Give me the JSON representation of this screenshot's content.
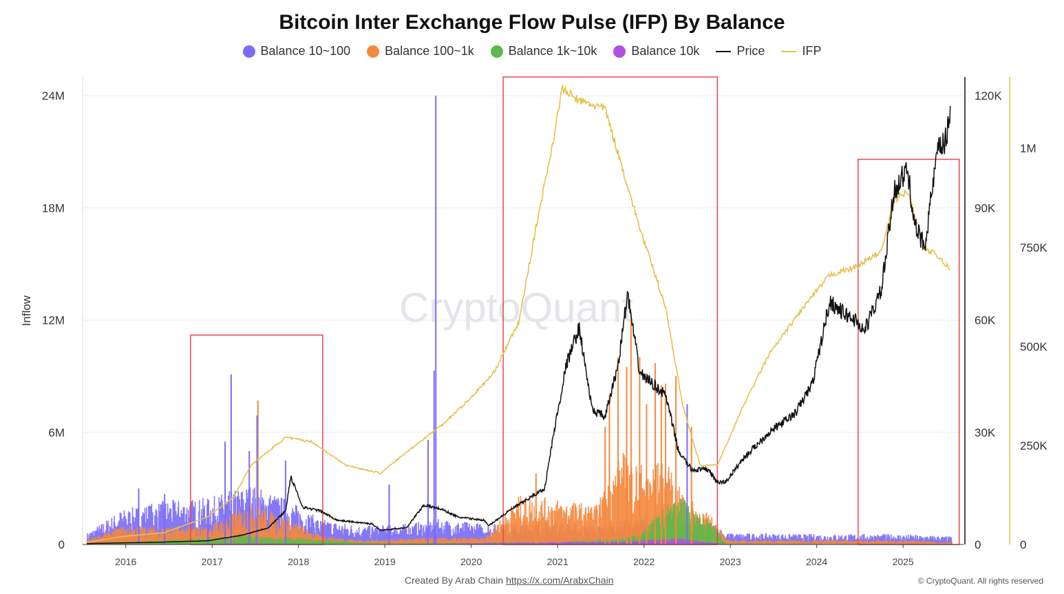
{
  "chart_data": {
    "type": "area",
    "title": "Bitcoin Inter Exchange Flow Pulse (IFP) By Balance",
    "ylabel": "Inflow",
    "y_ticks": [
      "0",
      "6M",
      "12M",
      "18M",
      "24M"
    ],
    "price_ticks": [
      "0",
      "30K",
      "60K",
      "90K",
      "120K"
    ],
    "ifp_ticks": [
      "0",
      "250K",
      "500K",
      "750K",
      "1M"
    ],
    "x_ticks": [
      "2016",
      "2017",
      "2018",
      "2019",
      "2020",
      "2021",
      "2022",
      "2023",
      "2024",
      "2025"
    ],
    "ylim": [
      0,
      25000000
    ],
    "price_lim": [
      0,
      125000
    ],
    "ifp_lim": [
      0,
      1180000
    ],
    "series": [
      {
        "name": "Balance 10~100",
        "color": "#7b6cf6"
      },
      {
        "name": "Balance 100~1k",
        "color": "#f4893e"
      },
      {
        "name": "Balance 1k~10k",
        "color": "#5cb84a"
      },
      {
        "name": "Balance 10k",
        "color": "#b24fe0"
      },
      {
        "name": "Price",
        "color": "#111111"
      },
      {
        "name": "IFP",
        "color": "#e6c04a"
      }
    ],
    "price": [
      [
        2015.6,
        250
      ],
      [
        2016.0,
        430
      ],
      [
        2016.5,
        650
      ],
      [
        2017.0,
        1000
      ],
      [
        2017.4,
        2500
      ],
      [
        2017.7,
        4500
      ],
      [
        2017.9,
        9000
      ],
      [
        2017.96,
        18000
      ],
      [
        2018.1,
        10000
      ],
      [
        2018.3,
        9000
      ],
      [
        2018.5,
        6500
      ],
      [
        2018.9,
        5500
      ],
      [
        2019.0,
        3800
      ],
      [
        2019.3,
        4500
      ],
      [
        2019.5,
        10500
      ],
      [
        2019.7,
        9500
      ],
      [
        2019.9,
        7300
      ],
      [
        2020.2,
        6500
      ],
      [
        2020.25,
        5000
      ],
      [
        2020.5,
        9200
      ],
      [
        2020.9,
        15000
      ],
      [
        2021.0,
        29000
      ],
      [
        2021.15,
        48000
      ],
      [
        2021.3,
        58000
      ],
      [
        2021.45,
        36000
      ],
      [
        2021.6,
        34000
      ],
      [
        2021.75,
        48000
      ],
      [
        2021.86,
        67000
      ],
      [
        2022.0,
        46000
      ],
      [
        2022.2,
        42000
      ],
      [
        2022.3,
        40000
      ],
      [
        2022.45,
        25000
      ],
      [
        2022.6,
        20000
      ],
      [
        2022.8,
        20000
      ],
      [
        2022.9,
        16500
      ],
      [
        2023.0,
        16800
      ],
      [
        2023.2,
        23000
      ],
      [
        2023.5,
        30000
      ],
      [
        2023.8,
        35000
      ],
      [
        2024.0,
        43000
      ],
      [
        2024.2,
        65000
      ],
      [
        2024.35,
        62000
      ],
      [
        2024.5,
        60000
      ],
      [
        2024.6,
        57000
      ],
      [
        2024.8,
        68000
      ],
      [
        2024.95,
        95000
      ],
      [
        2025.1,
        100000
      ],
      [
        2025.2,
        84000
      ],
      [
        2025.3,
        80000
      ],
      [
        2025.45,
        105000
      ],
      [
        2025.55,
        108000
      ],
      [
        2025.6,
        118000
      ]
    ],
    "ifp": [
      [
        2015.6,
        5000
      ],
      [
        2016.0,
        20000
      ],
      [
        2016.5,
        30000
      ],
      [
        2017.0,
        70000
      ],
      [
        2017.3,
        120000
      ],
      [
        2017.5,
        200000
      ],
      [
        2017.9,
        270000
      ],
      [
        2018.2,
        260000
      ],
      [
        2018.6,
        200000
      ],
      [
        2019.0,
        180000
      ],
      [
        2019.4,
        250000
      ],
      [
        2019.7,
        300000
      ],
      [
        2020.0,
        360000
      ],
      [
        2020.3,
        430000
      ],
      [
        2020.6,
        560000
      ],
      [
        2020.8,
        800000
      ],
      [
        2021.0,
        1020000
      ],
      [
        2021.1,
        1150000
      ],
      [
        2021.3,
        1120000
      ],
      [
        2021.6,
        1100000
      ],
      [
        2021.8,
        950000
      ],
      [
        2022.0,
        800000
      ],
      [
        2022.3,
        600000
      ],
      [
        2022.5,
        350000
      ],
      [
        2022.7,
        200000
      ],
      [
        2022.9,
        200000
      ],
      [
        2023.2,
        350000
      ],
      [
        2023.5,
        480000
      ],
      [
        2023.9,
        600000
      ],
      [
        2024.2,
        680000
      ],
      [
        2024.5,
        700000
      ],
      [
        2024.8,
        740000
      ],
      [
        2024.95,
        870000
      ],
      [
        2025.1,
        890000
      ],
      [
        2025.3,
        750000
      ],
      [
        2025.5,
        720000
      ],
      [
        2025.6,
        690000
      ]
    ],
    "inflow_envelope": {
      "balance_10_100": [
        [
          2015.6,
          500000
        ],
        [
          2016.0,
          1500000
        ],
        [
          2016.5,
          1900000
        ],
        [
          2017.0,
          2000000
        ],
        [
          2017.5,
          2600000
        ],
        [
          2017.9,
          2000000
        ],
        [
          2018.3,
          1100000
        ],
        [
          2018.8,
          800000
        ],
        [
          2019.3,
          900000
        ],
        [
          2019.7,
          1100000
        ],
        [
          2020.2,
          900000
        ],
        [
          2020.6,
          900000
        ],
        [
          2021.0,
          1000000
        ],
        [
          2021.5,
          800000
        ],
        [
          2022.0,
          1200000
        ],
        [
          2022.5,
          1100000
        ],
        [
          2022.9,
          800000
        ],
        [
          2023.0,
          500000
        ],
        [
          2024.0,
          450000
        ],
        [
          2025.0,
          450000
        ],
        [
          2025.6,
          350000
        ]
      ],
      "balance_100_1k": [
        [
          2015.6,
          200000
        ],
        [
          2016.0,
          800000
        ],
        [
          2016.5,
          800000
        ],
        [
          2017.0,
          800000
        ],
        [
          2017.5,
          1800000
        ],
        [
          2017.9,
          1200000
        ],
        [
          2018.3,
          400000
        ],
        [
          2018.8,
          200000
        ],
        [
          2019.5,
          300000
        ],
        [
          2020.2,
          300000
        ],
        [
          2020.6,
          2100000
        ],
        [
          2021.0,
          2000000
        ],
        [
          2021.5,
          1700000
        ],
        [
          2021.8,
          4000000
        ],
        [
          2022.0,
          3500000
        ],
        [
          2022.3,
          3600000
        ],
        [
          2022.5,
          2200000
        ],
        [
          2022.9,
          1000000
        ],
        [
          2023.0,
          200000
        ],
        [
          2024.0,
          200000
        ],
        [
          2025.0,
          200000
        ],
        [
          2025.6,
          100000
        ]
      ],
      "balance_1k_10k": [
        [
          2015.6,
          0
        ],
        [
          2016.5,
          200000
        ],
        [
          2017.5,
          400000
        ],
        [
          2018.0,
          300000
        ],
        [
          2019.0,
          50000
        ],
        [
          2020.5,
          100000
        ],
        [
          2021.0,
          100000
        ],
        [
          2021.8,
          300000
        ],
        [
          2022.0,
          500000
        ],
        [
          2022.45,
          2200000
        ],
        [
          2022.6,
          1600000
        ],
        [
          2022.9,
          700000
        ],
        [
          2023.0,
          50000
        ],
        [
          2025.6,
          20000
        ]
      ],
      "balance_10k": [
        [
          2015.6,
          0
        ],
        [
          2017.5,
          50000
        ],
        [
          2019.0,
          10000
        ],
        [
          2021.8,
          150000
        ],
        [
          2022.45,
          300000
        ],
        [
          2023.0,
          10000
        ],
        [
          2025.6,
          5000
        ]
      ]
    },
    "inflow_spikes": [
      {
        "x": 2016.2,
        "v": 3000000,
        "s": "balance_10_100"
      },
      {
        "x": 2016.5,
        "v": 2700000,
        "s": "balance_10_100"
      },
      {
        "x": 2017.0,
        "v": 2200000,
        "s": "balance_10_100"
      },
      {
        "x": 2017.2,
        "v": 5500000,
        "s": "balance_10_100"
      },
      {
        "x": 2017.27,
        "v": 9100000,
        "s": "balance_10_100"
      },
      {
        "x": 2017.48,
        "v": 5000000,
        "s": "balance_10_100"
      },
      {
        "x": 2017.58,
        "v": 7700000,
        "s": "balance_100_1k"
      },
      {
        "x": 2017.57,
        "v": 6900000,
        "s": "balance_10_100"
      },
      {
        "x": 2017.9,
        "v": 4500000,
        "s": "balance_10_100"
      },
      {
        "x": 2019.1,
        "v": 3200000,
        "s": "balance_10_100"
      },
      {
        "x": 2019.55,
        "v": 5600000,
        "s": "balance_10_100"
      },
      {
        "x": 2019.62,
        "v": 9300000,
        "s": "balance_10_100"
      },
      {
        "x": 2019.64,
        "v": 24000000,
        "s": "balance_10_100"
      },
      {
        "x": 2020.8,
        "v": 3800000,
        "s": "balance_100_1k"
      },
      {
        "x": 2021.6,
        "v": 6300000,
        "s": "balance_100_1k"
      },
      {
        "x": 2021.65,
        "v": 8000000,
        "s": "balance_100_1k"
      },
      {
        "x": 2021.75,
        "v": 10000000,
        "s": "balance_100_1k"
      },
      {
        "x": 2021.85,
        "v": 9500000,
        "s": "balance_100_1k"
      },
      {
        "x": 2021.9,
        "v": 12400000,
        "s": "balance_100_1k"
      },
      {
        "x": 2022.0,
        "v": 10000000,
        "s": "balance_100_1k"
      },
      {
        "x": 2022.08,
        "v": 7500000,
        "s": "balance_100_1k"
      },
      {
        "x": 2022.18,
        "v": 9700000,
        "s": "balance_100_1k"
      },
      {
        "x": 2022.25,
        "v": 8500000,
        "s": "balance_100_1k"
      },
      {
        "x": 2022.3,
        "v": 8600000,
        "s": "balance_100_1k"
      },
      {
        "x": 2022.42,
        "v": 9000000,
        "s": "balance_100_1k"
      },
      {
        "x": 2022.55,
        "v": 7500000,
        "s": "balance_10_100"
      },
      {
        "x": 2022.6,
        "v": 6300000,
        "s": "balance_100_1k"
      }
    ],
    "highlight_boxes": [
      {
        "x0": 2016.8,
        "x1": 2018.33,
        "y0": 0,
        "y1": 11200000
      },
      {
        "x0": 2020.42,
        "x1": 2022.9,
        "y0": 0,
        "y1": 25000000
      },
      {
        "x0": 2024.53,
        "x1": 2025.7,
        "y0": 0,
        "y1": 20600000
      }
    ]
  },
  "legend": {
    "balance_10_100": "Balance 10~100",
    "balance_100_1k": "Balance 100~1k",
    "balance_1k_10k": "Balance 1k~10k",
    "balance_10k": "Balance 10k",
    "price": "Price",
    "ifp": "IFP"
  },
  "watermark": "CryptoQuant",
  "footer": {
    "created_by": "Created By Arab Chain",
    "link_text": "https://x.com/ArabxChain",
    "copyright": "© CryptoQuant. All rights reserved"
  }
}
